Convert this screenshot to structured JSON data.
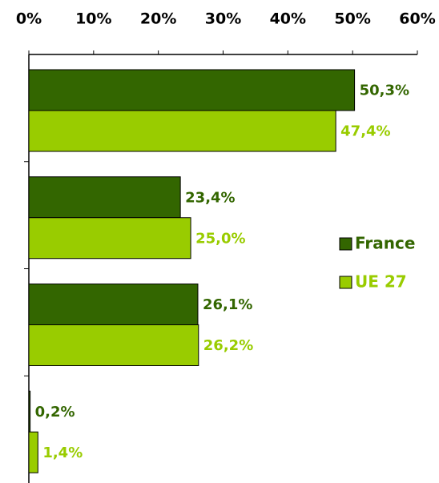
{
  "chart_data": {
    "type": "barh",
    "categories": [
      null,
      null,
      null,
      null
    ],
    "series": [
      {
        "name": "France",
        "color": "#336600",
        "values": [
          50.3,
          23.4,
          26.1,
          0.2
        ],
        "value_labels": [
          "50,3%",
          "23,4%",
          "26,1%",
          "0,2%"
        ]
      },
      {
        "name": "UE 27",
        "color": "#99cc00",
        "values": [
          47.4,
          25.0,
          26.2,
          1.4
        ],
        "value_labels": [
          "47,4%",
          "25,0%",
          "26,2%",
          "1,4%"
        ]
      }
    ],
    "xlim": [
      0,
      60
    ],
    "xticks": [
      {
        "value": 0,
        "label": "0%"
      },
      {
        "value": 10,
        "label": "10%"
      },
      {
        "value": 20,
        "label": "20%"
      },
      {
        "value": 30,
        "label": "30%"
      },
      {
        "value": 40,
        "label": "40%"
      },
      {
        "value": 50,
        "label": "50%"
      },
      {
        "value": 60,
        "label": "60%"
      }
    ],
    "legend": "right"
  }
}
